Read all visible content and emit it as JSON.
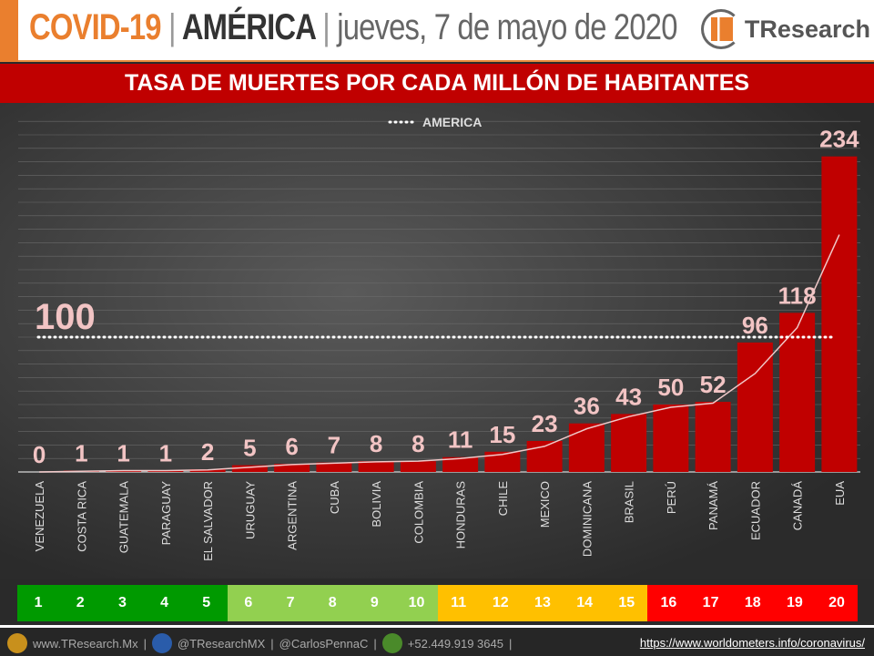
{
  "header": {
    "covid": "COVID-19",
    "sep": "|",
    "region": "AMÉRICA",
    "date": "jueves, 7 de mayo de 2020",
    "logo_text": "TResearch"
  },
  "banner": "TASA DE MUERTES POR CADA MILLÓN DE HABITANTES",
  "colors": {
    "bar": "#c00000",
    "label": "#f2c4c4",
    "rank_green": "#009a00",
    "rank_lightgreen": "#92d050",
    "rank_yellow": "#ffc000",
    "rank_red": "#ff0000"
  },
  "chart_data": {
    "type": "bar",
    "categories": [
      "VENEZUELA",
      "COSTA RICA",
      "GUATEMALA",
      "PARAGUAY",
      "EL SALVADOR",
      "URUGUAY",
      "ARGENTINA",
      "CUBA",
      "BOLIVIA",
      "COLOMBIA",
      "HONDURAS",
      "CHILE",
      "MEXICO",
      "DOMINICANA",
      "BRASIL",
      "PERÚ",
      "PANAMÁ",
      "ECUADOR",
      "CANADÁ",
      "EUA"
    ],
    "values": [
      0,
      1,
      1,
      1,
      2,
      5,
      6,
      7,
      8,
      8,
      11,
      15,
      23,
      36,
      43,
      50,
      52,
      96,
      118,
      234
    ],
    "trend_line": [
      0,
      0.5,
      1,
      1,
      1.5,
      3.5,
      5.5,
      6.5,
      7.5,
      8,
      10,
      13,
      19,
      32,
      41,
      48,
      51,
      73,
      107,
      176
    ],
    "reference": {
      "name": "AMERICA",
      "value": 100,
      "label": "100"
    },
    "legend": "top-center",
    "ylim": [
      0,
      270
    ],
    "grid": true
  },
  "ranks": [
    "1",
    "2",
    "3",
    "4",
    "5",
    "6",
    "7",
    "8",
    "9",
    "10",
    "11",
    "12",
    "13",
    "14",
    "15",
    "16",
    "17",
    "18",
    "19",
    "20"
  ],
  "footer": {
    "web": "www.TResearch.Mx",
    "twitter": "@TResearchMX",
    "twitter2": "@CarlosPennaC",
    "phone": "+52.449.919 3645",
    "source": "https://www.worldometers.info/coronavirus/"
  }
}
